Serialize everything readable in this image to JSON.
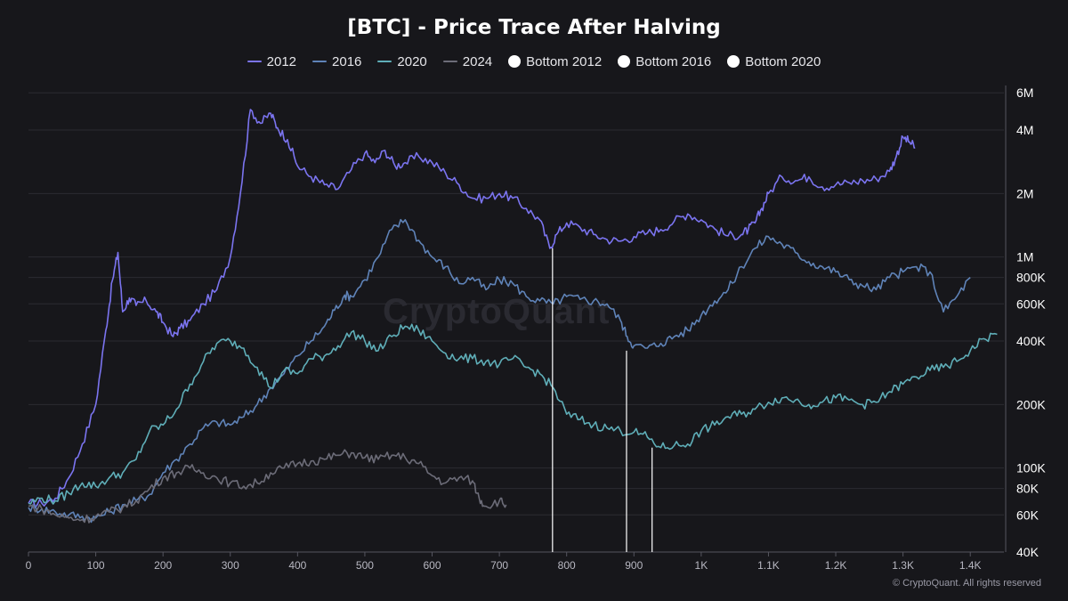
{
  "chart_data": {
    "type": "line",
    "title": "[BTC] - Price Trace After Halving",
    "xlabel": "",
    "ylabel": "",
    "y_scale": "log",
    "xlim": [
      0,
      1450
    ],
    "ylim": [
      40000,
      6500000
    ],
    "x_ticks": [
      0,
      100,
      200,
      300,
      400,
      500,
      600,
      700,
      800,
      900,
      1000,
      1100,
      1200,
      1300,
      1400
    ],
    "x_tick_labels": [
      "0",
      "100",
      "200",
      "300",
      "400",
      "500",
      "600",
      "700",
      "800",
      "900",
      "1K",
      "1.1K",
      "1.2K",
      "1.3K",
      "1.4K"
    ],
    "y_ticks": [
      40000,
      60000,
      80000,
      100000,
      200000,
      400000,
      600000,
      800000,
      1000000,
      2000000,
      4000000,
      6000000
    ],
    "y_tick_labels": [
      "40K",
      "60K",
      "80K",
      "100K",
      "200K",
      "400K",
      "600K",
      "800K",
      "1M",
      "2M",
      "4M",
      "6M"
    ],
    "grid": true,
    "legend_position": "top-center",
    "series": [
      {
        "name": "2012",
        "color": "#7b74f0",
        "x": [
          0,
          20,
          40,
          60,
          80,
          100,
          115,
          125,
          133,
          140,
          150,
          160,
          175,
          190,
          200,
          215,
          225,
          240,
          260,
          280,
          300,
          315,
          330,
          345,
          360,
          370,
          385,
          400,
          420,
          440,
          460,
          480,
          500,
          515,
          530,
          545,
          560,
          580,
          600,
          620,
          640,
          660,
          680,
          700,
          720,
          740,
          760,
          775,
          785,
          800,
          820,
          840,
          860,
          880,
          900,
          920,
          940,
          960,
          980,
          1000,
          1020,
          1040,
          1060,
          1070,
          1080,
          1090,
          1100,
          1120,
          1140,
          1160,
          1180,
          1200,
          1220,
          1240,
          1260,
          1280,
          1290,
          1300,
          1310,
          1318
        ],
        "y": [
          68000,
          68000,
          72000,
          90000,
          130000,
          200000,
          450000,
          780000,
          1050000,
          550000,
          640000,
          590000,
          620000,
          550000,
          490000,
          420000,
          460000,
          500000,
          600000,
          700000,
          1000000,
          2000000,
          5000000,
          4300000,
          4800000,
          4100000,
          3600000,
          2700000,
          2400000,
          2200000,
          2100000,
          2600000,
          3100000,
          2800000,
          3200000,
          2700000,
          2800000,
          3000000,
          2800000,
          2500000,
          2200000,
          1900000,
          1900000,
          2000000,
          1900000,
          1700000,
          1500000,
          1100000,
          1280000,
          1450000,
          1380000,
          1280000,
          1210000,
          1190000,
          1250000,
          1300000,
          1350000,
          1480000,
          1600000,
          1500000,
          1360000,
          1260000,
          1280000,
          1350000,
          1450000,
          1700000,
          2000000,
          2400000,
          2300000,
          2400000,
          2150000,
          2200000,
          2250000,
          2300000,
          2350000,
          2550000,
          3000000,
          3700000,
          3500000,
          3300000
        ]
      },
      {
        "name": "2016",
        "color": "#5f83b8",
        "x": [
          0,
          20,
          40,
          60,
          80,
          100,
          120,
          140,
          160,
          180,
          200,
          220,
          240,
          260,
          280,
          300,
          320,
          340,
          360,
          380,
          400,
          420,
          440,
          455,
          470,
          480,
          500,
          520,
          540,
          560,
          580,
          600,
          620,
          640,
          660,
          680,
          700,
          720,
          740,
          760,
          780,
          800,
          820,
          840,
          860,
          880,
          890,
          900,
          920,
          940,
          960,
          980,
          1000,
          1020,
          1040,
          1060,
          1080,
          1100,
          1120,
          1140,
          1160,
          1180,
          1200,
          1220,
          1240,
          1260,
          1280,
          1300,
          1320,
          1340,
          1360,
          1380,
          1400
        ],
        "y": [
          65000,
          64000,
          62000,
          60000,
          59000,
          58000,
          62000,
          67000,
          70000,
          75000,
          95000,
          110000,
          130000,
          155000,
          165000,
          160000,
          175000,
          200000,
          240000,
          280000,
          340000,
          400000,
          470000,
          560000,
          660000,
          650000,
          780000,
          1000000,
          1350000,
          1500000,
          1200000,
          1000000,
          900000,
          750000,
          800000,
          700000,
          780000,
          750000,
          650000,
          620000,
          600000,
          650000,
          630000,
          620000,
          600000,
          500000,
          420000,
          380000,
          370000,
          390000,
          420000,
          450000,
          530000,
          620000,
          700000,
          900000,
          1100000,
          1250000,
          1150000,
          1050000,
          950000,
          900000,
          850000,
          780000,
          730000,
          700000,
          800000,
          850000,
          900000,
          850000,
          550000,
          650000,
          800000
        ]
      },
      {
        "name": "2020",
        "color": "#5faeb8",
        "x": [
          0,
          20,
          40,
          60,
          80,
          100,
          120,
          140,
          160,
          180,
          200,
          220,
          240,
          260,
          280,
          300,
          320,
          340,
          360,
          380,
          400,
          420,
          440,
          460,
          480,
          500,
          520,
          540,
          560,
          580,
          600,
          620,
          640,
          660,
          680,
          700,
          720,
          740,
          760,
          780,
          800,
          820,
          840,
          860,
          880,
          900,
          920,
          940,
          960,
          980,
          1000,
          1020,
          1040,
          1060,
          1080,
          1100,
          1120,
          1140,
          1160,
          1180,
          1200,
          1220,
          1240,
          1260,
          1280,
          1300,
          1320,
          1340,
          1360,
          1380,
          1400,
          1420,
          1440
        ],
        "y": [
          68000,
          72000,
          70000,
          76000,
          85000,
          82000,
          90000,
          95000,
          110000,
          150000,
          160000,
          190000,
          250000,
          320000,
          390000,
          400000,
          370000,
          300000,
          240000,
          290000,
          280000,
          330000,
          340000,
          380000,
          440000,
          400000,
          360000,
          420000,
          470000,
          450000,
          400000,
          350000,
          330000,
          330000,
          320000,
          310000,
          330000,
          300000,
          280000,
          240000,
          180000,
          170000,
          160000,
          155000,
          150000,
          148000,
          140000,
          125000,
          128000,
          130000,
          150000,
          160000,
          175000,
          180000,
          190000,
          205000,
          215000,
          210000,
          200000,
          205000,
          215000,
          210000,
          200000,
          205000,
          230000,
          250000,
          270000,
          290000,
          300000,
          320000,
          360000,
          410000,
          430000
        ]
      },
      {
        "name": "2024",
        "color": "#6c6c78",
        "x": [
          0,
          20,
          40,
          60,
          80,
          100,
          120,
          140,
          160,
          180,
          200,
          220,
          240,
          260,
          280,
          300,
          320,
          340,
          360,
          380,
          400,
          420,
          440,
          460,
          480,
          500,
          520,
          540,
          560,
          580,
          600,
          620,
          640,
          660,
          670,
          680,
          700,
          710
        ],
        "y": [
          66000,
          64000,
          60000,
          58000,
          57000,
          59000,
          62000,
          65000,
          70000,
          80000,
          90000,
          95000,
          100000,
          95000,
          90000,
          85000,
          82000,
          85000,
          95000,
          100000,
          105000,
          108000,
          110000,
          115000,
          118000,
          112000,
          110000,
          115000,
          112000,
          105000,
          92000,
          85000,
          90000,
          87000,
          72000,
          66000,
          70000,
          67000
        ]
      },
      {
        "name": "Bottom 2012",
        "color": "#ffffff",
        "type": "vertical-marker",
        "x": 779,
        "y": 1100000
      },
      {
        "name": "Bottom 2016",
        "color": "#ffffff",
        "type": "vertical-marker",
        "x": 889,
        "y": 360000
      },
      {
        "name": "Bottom 2020",
        "color": "#ffffff",
        "type": "vertical-marker",
        "x": 927,
        "y": 125000
      }
    ]
  },
  "legend": {
    "items": [
      {
        "label": "2012",
        "kind": "line",
        "color": "#7b74f0"
      },
      {
        "label": "2016",
        "kind": "line",
        "color": "#5f83b8"
      },
      {
        "label": "2020",
        "kind": "line",
        "color": "#5faeb8"
      },
      {
        "label": "2024",
        "kind": "line",
        "color": "#6c6c78"
      },
      {
        "label": "Bottom 2012",
        "kind": "dot",
        "color": "#ffffff"
      },
      {
        "label": "Bottom 2016",
        "kind": "dot",
        "color": "#ffffff"
      },
      {
        "label": "Bottom 2020",
        "kind": "dot",
        "color": "#ffffff"
      }
    ]
  },
  "watermark": "CryptoQuant",
  "footer": "© CryptoQuant. All rights reserved"
}
